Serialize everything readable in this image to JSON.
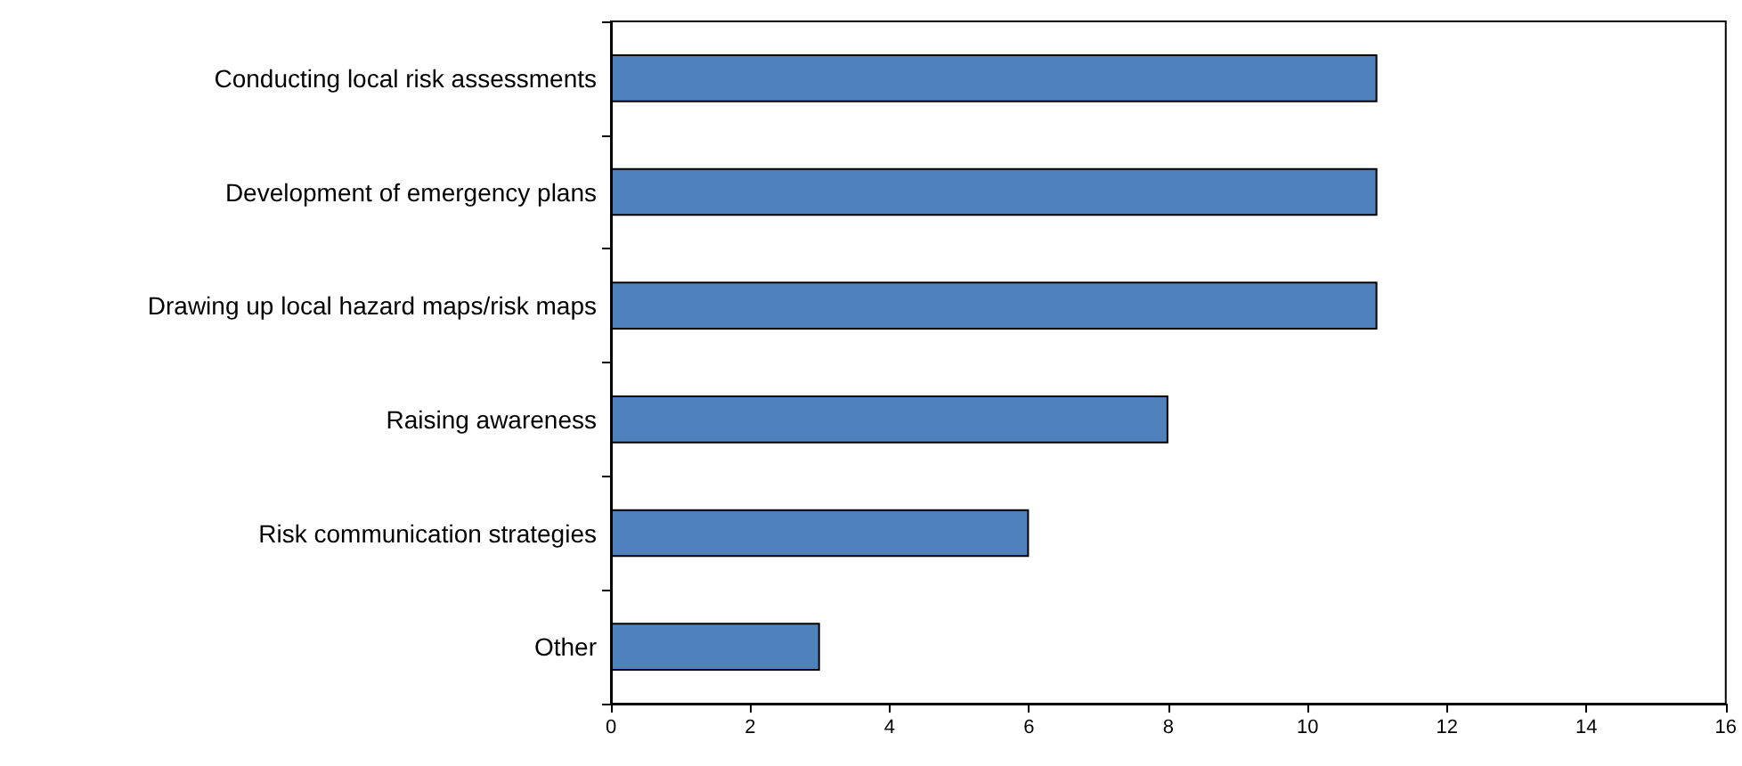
{
  "chart_data": {
    "type": "bar",
    "orientation": "horizontal",
    "categories": [
      "Conducting local risk assessments",
      "Development of emergency plans",
      "Drawing up local hazard maps/risk maps",
      "Raising awareness",
      "Risk communication strategies",
      "Other"
    ],
    "values": [
      11,
      11,
      11,
      8,
      6,
      3
    ],
    "color": "#4f81bd",
    "xlim": [
      0,
      16
    ],
    "xticks": [
      0,
      2,
      4,
      6,
      8,
      10,
      12,
      14,
      16
    ],
    "grid": false
  }
}
